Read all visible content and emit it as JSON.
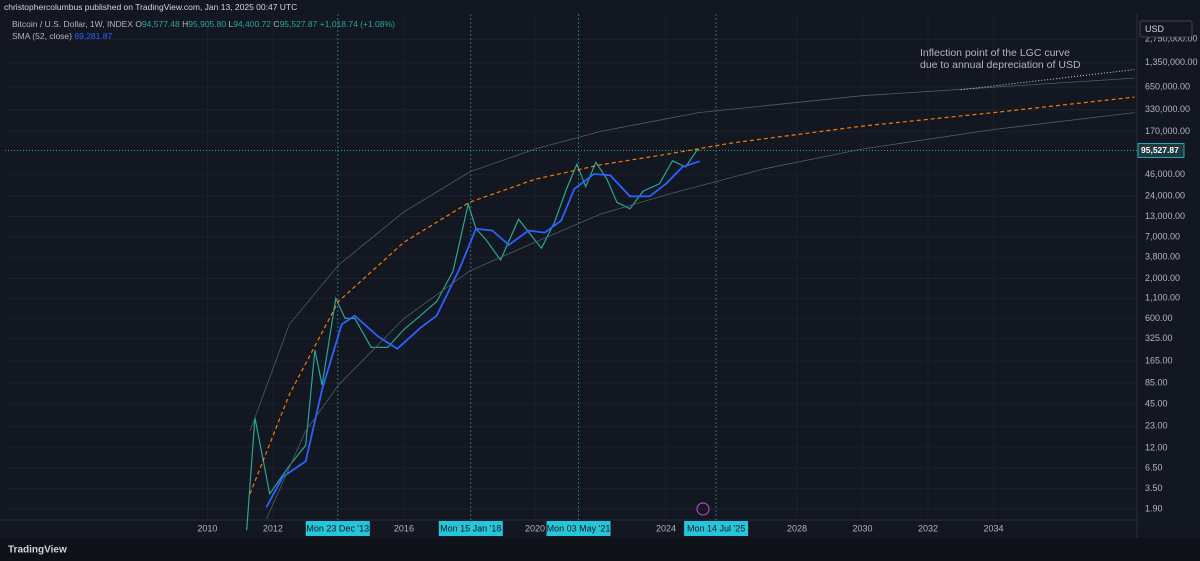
{
  "header": {
    "publisher": "christophercolumbus published on TradingView.com, Jan 13, 2025 00:47 UTC",
    "symbol": "Bitcoin / U.S. Dollar, 1W, INDEX",
    "ohlc": [
      {
        "label": "O",
        "value": "94,577.48"
      },
      {
        "label": "H",
        "value": "95,905.80"
      },
      {
        "label": "L",
        "value": "94,400.72"
      },
      {
        "label": "C",
        "value": "95,527.87"
      }
    ],
    "change": "+1,018.74 (+1.08%)",
    "indicator": "SMA (52, close)",
    "indicator_value": "69,281.87",
    "currency": "USD",
    "brand": "TradingView"
  },
  "chart_data": {
    "type": "line",
    "log_scale": true,
    "grid": true,
    "annotation": [
      "Inflection point of the LGC curve",
      "due to annual depreciation of USD"
    ],
    "xlim": [
      2003.82,
      2038.38
    ],
    "xticks": [
      2010,
      2012,
      2016,
      2020,
      2024,
      2028,
      2030,
      2032,
      2034
    ],
    "date_markers": [
      {
        "value": 2013.98,
        "label": "Mon 23 Dec '13"
      },
      {
        "value": 2018.04,
        "label": "Mon 15 Jan '18"
      },
      {
        "value": 2021.33,
        "label": "Mon 03 May '21"
      },
      {
        "value": 2025.53,
        "label": "Mon 14 Jul '25"
      }
    ],
    "ylim": [
      1.36,
      5900000
    ],
    "yticks": [
      {
        "value": 1.9,
        "label": "1.90"
      },
      {
        "value": 3.5,
        "label": "3.50"
      },
      {
        "value": 6.5,
        "label": "6.50"
      },
      {
        "value": 12,
        "label": "12.00"
      },
      {
        "value": 23,
        "label": "23.00"
      },
      {
        "value": 45,
        "label": "45.00"
      },
      {
        "value": 85,
        "label": "85.00"
      },
      {
        "value": 165,
        "label": "165.00"
      },
      {
        "value": 325,
        "label": "325.00"
      },
      {
        "value": 600,
        "label": "600.00"
      },
      {
        "value": 1100,
        "label": "1,100.00"
      },
      {
        "value": 2000,
        "label": "2,000.00"
      },
      {
        "value": 3800,
        "label": "3,800.00"
      },
      {
        "value": 7000,
        "label": "7,000.00"
      },
      {
        "value": 13000,
        "label": "13,000.00"
      },
      {
        "value": 24000,
        "label": "24,000.00"
      },
      {
        "value": 46000,
        "label": "46,000.00"
      },
      {
        "value": 170000,
        "label": "170,000.00"
      },
      {
        "value": 330000,
        "label": "330,000.00"
      },
      {
        "value": 650000,
        "label": "650,000.00"
      },
      {
        "value": 1350000,
        "label": "1,350,000.00"
      },
      {
        "value": 2750000,
        "label": "2,750,000.00"
      }
    ],
    "last_price": {
      "value": 95527.87,
      "label": "95,527.87"
    },
    "series": [
      {
        "color": "#26a69a",
        "style": "solid",
        "width": 1.2,
        "x": [
          2011.2,
          2011.45,
          2011.9,
          2012.5,
          2013.0,
          2013.28,
          2013.5,
          2013.92,
          2014.2,
          2014.5,
          2015.0,
          2015.5,
          2016.0,
          2016.5,
          2017.0,
          2017.5,
          2017.96,
          2018.2,
          2018.5,
          2018.95,
          2019.5,
          2019.9,
          2020.2,
          2020.6,
          2020.95,
          2021.28,
          2021.55,
          2021.86,
          2022.2,
          2022.5,
          2022.9,
          2023.3,
          2023.8,
          2024.2,
          2024.6,
          2024.95,
          2025.03
        ],
        "values": [
          1,
          30,
          3,
          7,
          13,
          230,
          80,
          1100,
          600,
          600,
          250,
          250,
          430,
          650,
          1000,
          2500,
          19000,
          9000,
          6500,
          3500,
          12000,
          7200,
          5000,
          11000,
          29000,
          63000,
          32000,
          67000,
          40000,
          20000,
          16500,
          28000,
          35000,
          70000,
          58000,
          97000,
          95527.87
        ]
      },
      {
        "name": "SMA (52, close)",
        "color": "#2962ff",
        "style": "solid",
        "width": 1.8,
        "x": [
          2011.8,
          2012.3,
          2013.0,
          2013.5,
          2014.1,
          2014.5,
          2015.2,
          2015.8,
          2016.5,
          2017.0,
          2017.7,
          2018.2,
          2018.7,
          2019.2,
          2019.8,
          2020.3,
          2020.8,
          2021.2,
          2021.8,
          2022.3,
          2022.9,
          2023.5,
          2024.0,
          2024.5,
          2025.03
        ],
        "values": [
          2,
          5,
          8,
          70,
          500,
          650,
          350,
          240,
          450,
          650,
          2700,
          9000,
          8500,
          5500,
          8500,
          8000,
          11500,
          30000,
          47000,
          45000,
          24000,
          24000,
          35000,
          58000,
          69281.87
        ]
      },
      {
        "color": "#f57c00",
        "style": "dashed",
        "width": 1.2,
        "x": [
          2011.3,
          2012.5,
          2014,
          2016,
          2018,
          2020,
          2022,
          2024,
          2026,
          2030,
          2034,
          2038.3
        ],
        "values": [
          3,
          60,
          1000,
          6000,
          20000,
          40000,
          62000,
          85000,
          120000,
          200000,
          300000,
          480000
        ]
      },
      {
        "color": "#4a6060",
        "style": "solid",
        "width": 0.8,
        "x": [
          2011.3,
          2012.5,
          2014,
          2016,
          2018,
          2020,
          2022,
          2025,
          2030,
          2038.3
        ],
        "values": [
          20,
          500,
          3000,
          15000,
          50000,
          100000,
          170000,
          300000,
          500000,
          850000
        ]
      },
      {
        "color": "#4a6060",
        "style": "solid",
        "width": 0.8,
        "x": [
          2011.8,
          2013,
          2014,
          2016,
          2018,
          2020,
          2022,
          2024,
          2027,
          2030,
          2034,
          2038.3
        ],
        "values": [
          1.4,
          20,
          80,
          600,
          2500,
          6000,
          14000,
          25000,
          55000,
          100000,
          180000,
          300000
        ]
      },
      {
        "color": "#d1d4dc",
        "style": "dotted",
        "width": 1,
        "x": [
          2033,
          2038.3
        ],
        "values": [
          600000,
          1100000
        ]
      }
    ]
  }
}
